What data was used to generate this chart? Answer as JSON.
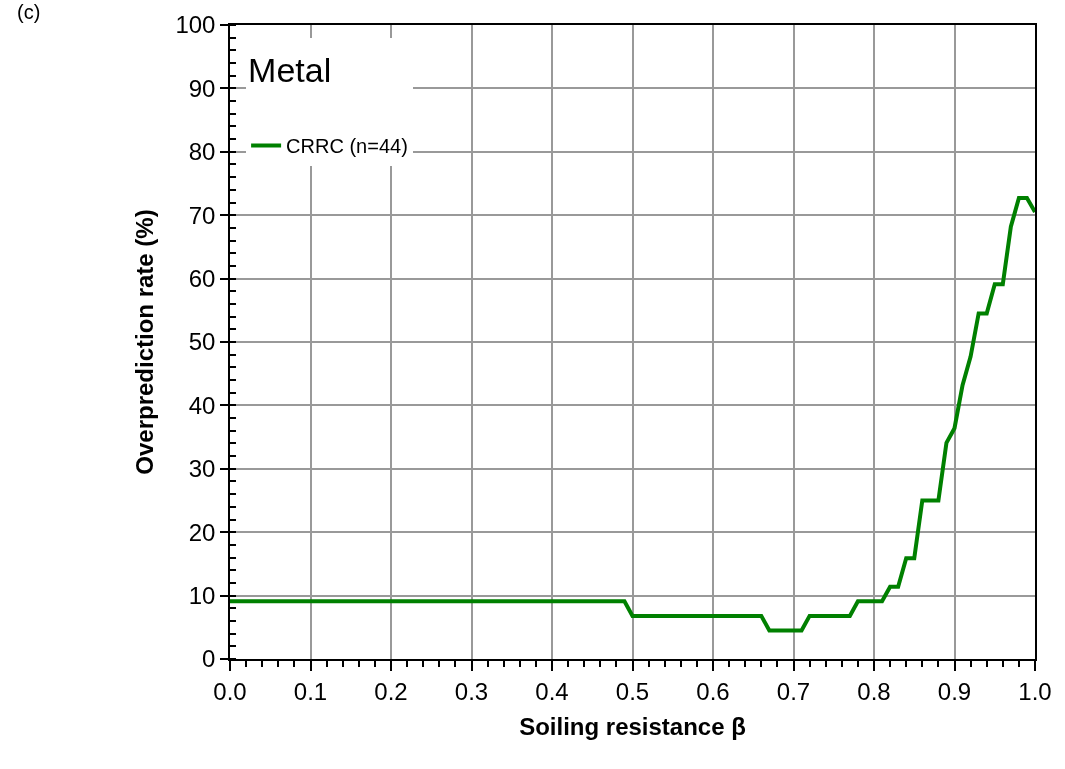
{
  "chart_data": {
    "type": "line",
    "xlabel": "Soiling resistance β",
    "ylabel": "Overprediction rate (%)",
    "legend_title": "Metal",
    "annotations": [
      "(c)"
    ],
    "x": [
      0,
      0.49,
      0.5,
      0.66,
      0.67,
      0.71,
      0.72,
      0.77,
      0.78,
      0.81,
      0.82,
      0.83,
      0.84,
      0.85,
      0.86,
      0.88,
      0.89,
      0.9,
      0.91,
      0.92,
      0.93,
      0.94,
      0.95,
      0.96,
      0.97,
      0.98,
      0.99,
      1.0
    ],
    "series": [
      {
        "name": "CRRC (n=44)",
        "color": "#008000",
        "values": [
          9.1,
          9.1,
          6.8,
          6.8,
          4.5,
          4.5,
          6.8,
          6.8,
          9.1,
          9.1,
          11.4,
          11.4,
          15.9,
          15.9,
          25,
          25,
          34.1,
          36.4,
          43.2,
          47.7,
          54.5,
          54.5,
          59.1,
          59.1,
          68.2,
          72.7,
          72.7,
          70.5
        ]
      }
    ],
    "xlim": [
      0,
      1
    ],
    "xticks": [
      {
        "value": 0,
        "label": "0.0"
      },
      0.1,
      0.2,
      0.3,
      0.4,
      0.5,
      0.6,
      0.7,
      0.8,
      0.9,
      {
        "value": 1,
        "label": "1.0"
      }
    ],
    "ylim": [
      0,
      100
    ],
    "yticks": [
      0,
      10,
      20,
      30,
      40,
      50,
      60,
      70,
      80,
      90,
      100
    ],
    "grid": true,
    "legend": "top left",
    "marker": "none",
    "line_style": "solid"
  }
}
